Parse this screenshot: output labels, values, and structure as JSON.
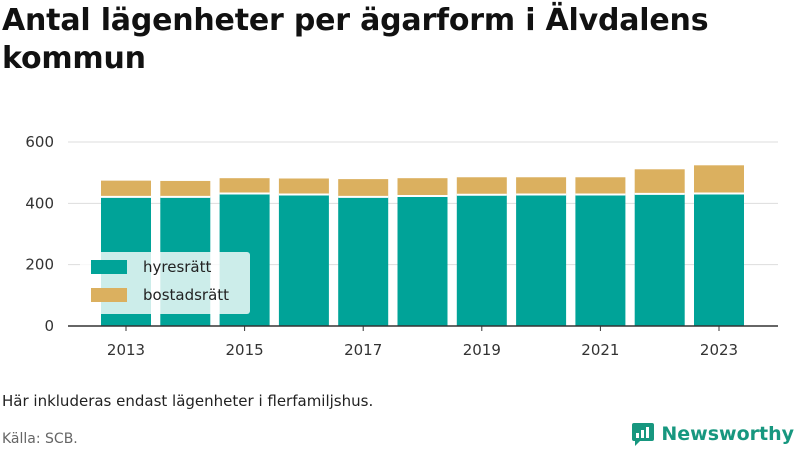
{
  "title": "Antal lägenheter per ägarform i Älvdalens kommun",
  "note": "Här inkluderas endast lägenheter i flerfamiljshus.",
  "source": "Källa: SCB.",
  "brand": "Newsworthy",
  "colors": {
    "hyresratt": "#00a398",
    "bostadsratt": "#dbb05f",
    "brand": "#17977f"
  },
  "chart_data": {
    "type": "bar",
    "stacked": true,
    "categories": [
      "2013",
      "2014",
      "2015",
      "2016",
      "2017",
      "2018",
      "2019",
      "2020",
      "2021",
      "2022",
      "2023"
    ],
    "x_tick_labels": [
      "2013",
      "2015",
      "2017",
      "2019",
      "2021",
      "2023"
    ],
    "series": [
      {
        "name": "hyresrätt",
        "values": [
          421,
          421,
          432,
          429,
          421,
          424,
          428,
          429,
          429,
          431,
          432
        ]
      },
      {
        "name": "bostadsrätt",
        "values": [
          53,
          52,
          50,
          52,
          58,
          58,
          57,
          56,
          56,
          80,
          92
        ]
      }
    ],
    "ylim": [
      0,
      600
    ],
    "yticks": [
      0,
      200,
      400,
      600
    ],
    "grid": true,
    "legend_position": "bottom-left"
  }
}
